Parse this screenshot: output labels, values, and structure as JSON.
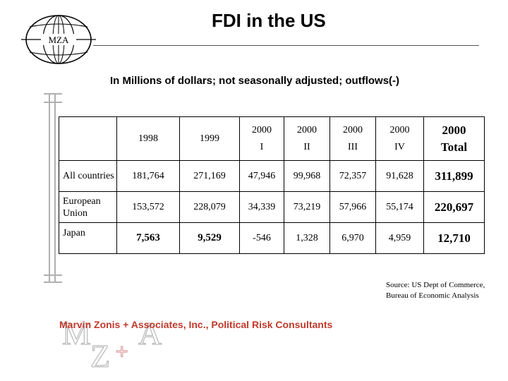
{
  "header": {
    "title": "FDI in the US",
    "logo_text": "MZA"
  },
  "subtitle": "In Millions of dollars; not seasonally adjusted; outflows(-)",
  "table": {
    "columns": [
      {
        "line1": "1998",
        "line2": ""
      },
      {
        "line1": "1999",
        "line2": ""
      },
      {
        "line1": "2000",
        "line2": "I"
      },
      {
        "line1": "2000",
        "line2": "II"
      },
      {
        "line1": "2000",
        "line2": "III"
      },
      {
        "line1": "2000",
        "line2": "IV"
      },
      {
        "line1": "2000",
        "line2": "Total"
      }
    ],
    "rows": [
      {
        "label": "All countries",
        "values": [
          "181,764",
          "271,169",
          "47,946",
          "99,968",
          "72,357",
          "91,628",
          "311,899"
        ]
      },
      {
        "label": "European Union",
        "values": [
          "153,572",
          "228,079",
          "34,339",
          "73,219",
          "57,966",
          "55,174",
          "220,697"
        ]
      },
      {
        "label": "Japan",
        "values": [
          "7,563",
          "9,529",
          "-546",
          "1,328",
          "6,970",
          "4,959",
          "12,710"
        ]
      }
    ]
  },
  "source": {
    "line1": "Source: US Dept of Commerce,",
    "line2": "Bureau of Economic Analysis"
  },
  "footer": {
    "company": "Marvin Zonis + Associates, Inc., Political Risk Consultants",
    "logo_letters": "MZ+A"
  },
  "colors": {
    "footer_red": "#c0392b",
    "logo_gray": "#b9b9b9"
  }
}
